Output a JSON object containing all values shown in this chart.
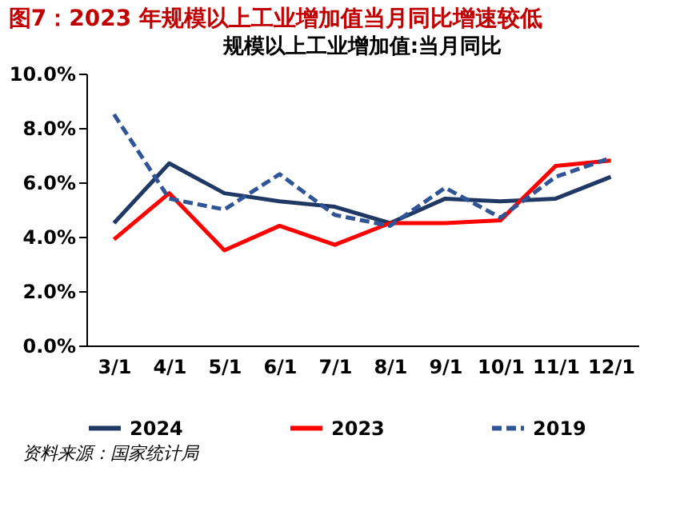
{
  "chart_data": {
    "type": "line",
    "title": "图7：2023 年规模以上工业增加值当月同比增速较低",
    "subtitle": "规模以上工业增加值:当月同比",
    "categories": [
      "3/1",
      "4/1",
      "5/1",
      "6/1",
      "7/1",
      "8/1",
      "9/1",
      "10/1",
      "11/1",
      "12/1"
    ],
    "series": [
      {
        "name": "2024",
        "color": "#1f3864",
        "line_style": "solid",
        "values": [
          4.5,
          6.7,
          5.6,
          5.3,
          5.1,
          4.5,
          5.4,
          5.3,
          5.4,
          6.2
        ]
      },
      {
        "name": "2023",
        "color": "#ff0000",
        "line_style": "solid",
        "values": [
          3.9,
          5.6,
          3.5,
          4.4,
          3.7,
          4.5,
          4.5,
          4.6,
          6.6,
          6.8
        ]
      },
      {
        "name": "2019",
        "color": "#2f5597",
        "line_style": "dashed",
        "values": [
          8.5,
          5.4,
          5.0,
          6.3,
          4.8,
          4.4,
          5.8,
          4.7,
          6.2,
          6.9
        ]
      }
    ],
    "ylim": [
      0,
      10
    ],
    "yticks": [
      {
        "value": 0,
        "label": "0.0%"
      },
      {
        "value": 2,
        "label": "2.0%"
      },
      {
        "value": 4,
        "label": "4.0%"
      },
      {
        "value": 6,
        "label": "6.0%"
      },
      {
        "value": 8,
        "label": "8.0%"
      },
      {
        "value": 10,
        "label": "10.0%"
      }
    ],
    "grid": false,
    "legend": "bottom",
    "marker": "none",
    "annotations": [
      "资料来源：国家统计局"
    ]
  }
}
